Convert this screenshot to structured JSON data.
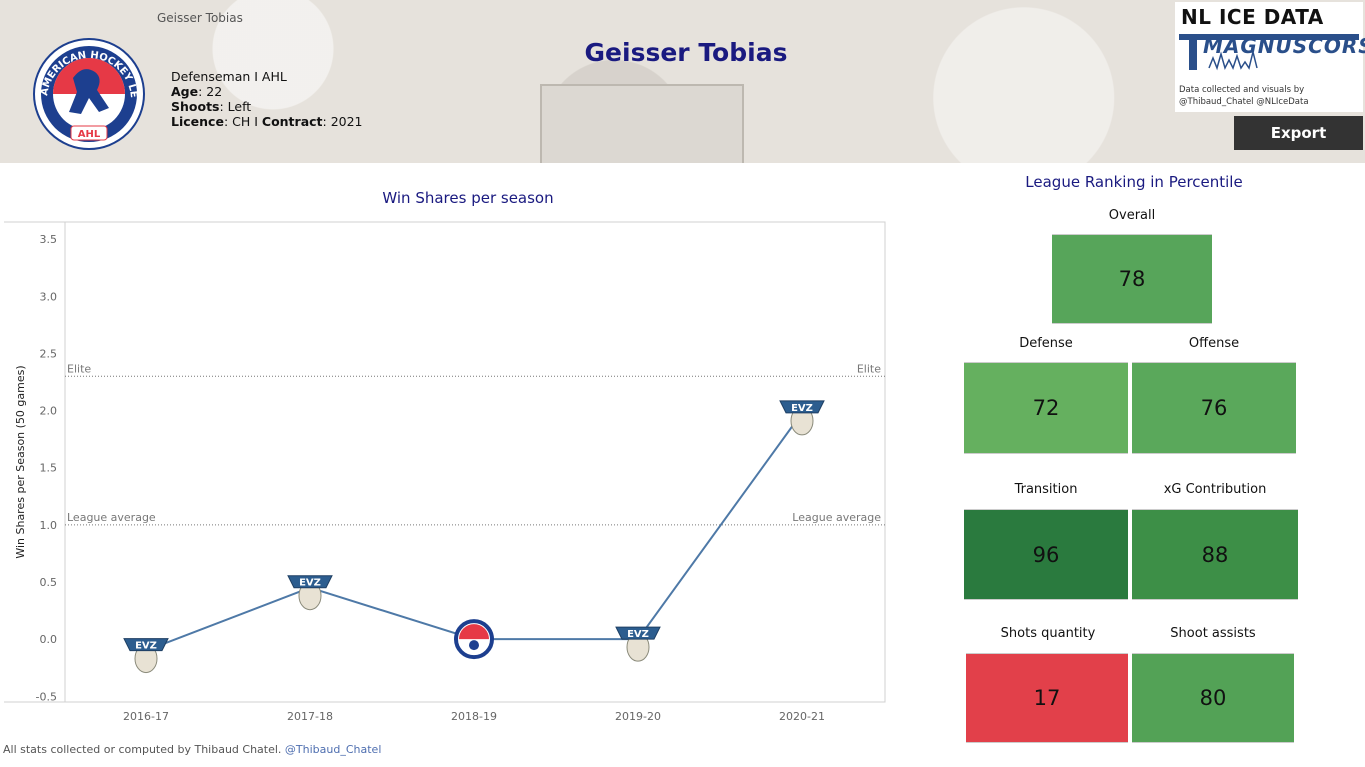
{
  "header": {
    "small_name": "Geisser Tobias",
    "title": "Geisser Tobias",
    "position_league": "Defenseman I AHL",
    "age_label": "Age",
    "age_value": ": 22",
    "shoots_label": "Shoots",
    "shoots_value": ": Left",
    "licence_label": "Licence",
    "licence_value": ": CH I ",
    "contract_label": "Contract",
    "contract_value": ": 2021"
  },
  "league_logo": {
    "icon": "ahl-logo-icon",
    "arc_text": "AMERICAN HOCKEY LEAGUE",
    "badge": "AHL"
  },
  "brand": {
    "line1": "NL ICE DATA",
    "line2": "MAGNUSCORSI",
    "credit1": "Data collected and visuals by",
    "credit2": "@Thibaud_Chatel @NLIceData"
  },
  "export_label": "Export",
  "chart_data": {
    "type": "line",
    "title": "Win Shares per season",
    "xlabel": "",
    "ylabel": "Win Shares per Season (50 games)",
    "categories": [
      "2016-17",
      "2017-18",
      "2018-19",
      "2019-20",
      "2020-21"
    ],
    "values": [
      -0.1,
      0.45,
      0.0,
      0.0,
      1.98
    ],
    "team_logos": [
      "EVZ",
      "EVZ",
      "AHL",
      "EVZ",
      "EVZ"
    ],
    "ylim": [
      -0.55,
      3.65
    ],
    "yticks": [
      -0.5,
      0.0,
      0.5,
      1.0,
      1.5,
      2.0,
      2.5,
      3.0,
      3.5
    ],
    "ytick_labels": [
      "-0.5",
      "0.0",
      "0.5",
      "1.0",
      "1.5",
      "2.0",
      "2.5",
      "3.0",
      "3.5"
    ],
    "reference_lines": [
      {
        "label": "Elite",
        "value": 2.3
      },
      {
        "label": "League average",
        "value": 1.0
      }
    ],
    "line_color": "#4e79a7"
  },
  "footer": {
    "text": "All stats collected or computed by Thibaud Chatel. ",
    "handle": "@Thibaud_Chatel"
  },
  "ranking": {
    "title": "League Ranking in Percentile",
    "overall": {
      "label": "Overall",
      "value": "78",
      "color": "#57a55a"
    },
    "defense": {
      "label": "Defense",
      "value": "72",
      "color": "#65b05f"
    },
    "offense": {
      "label": "Offense",
      "value": "76",
      "color": "#5aa85b"
    },
    "transition": {
      "label": "Transition",
      "value": "96",
      "color": "#2a7a3e"
    },
    "xg_contribution": {
      "label": "xG Contribution",
      "value": "88",
      "color": "#3d8f47"
    },
    "shots_quantity": {
      "label": "Shots quantity",
      "value": "17",
      "color": "#e2404a"
    },
    "shoot_assists": {
      "label": "Shoot assists",
      "value": "80",
      "color": "#53a256"
    }
  }
}
